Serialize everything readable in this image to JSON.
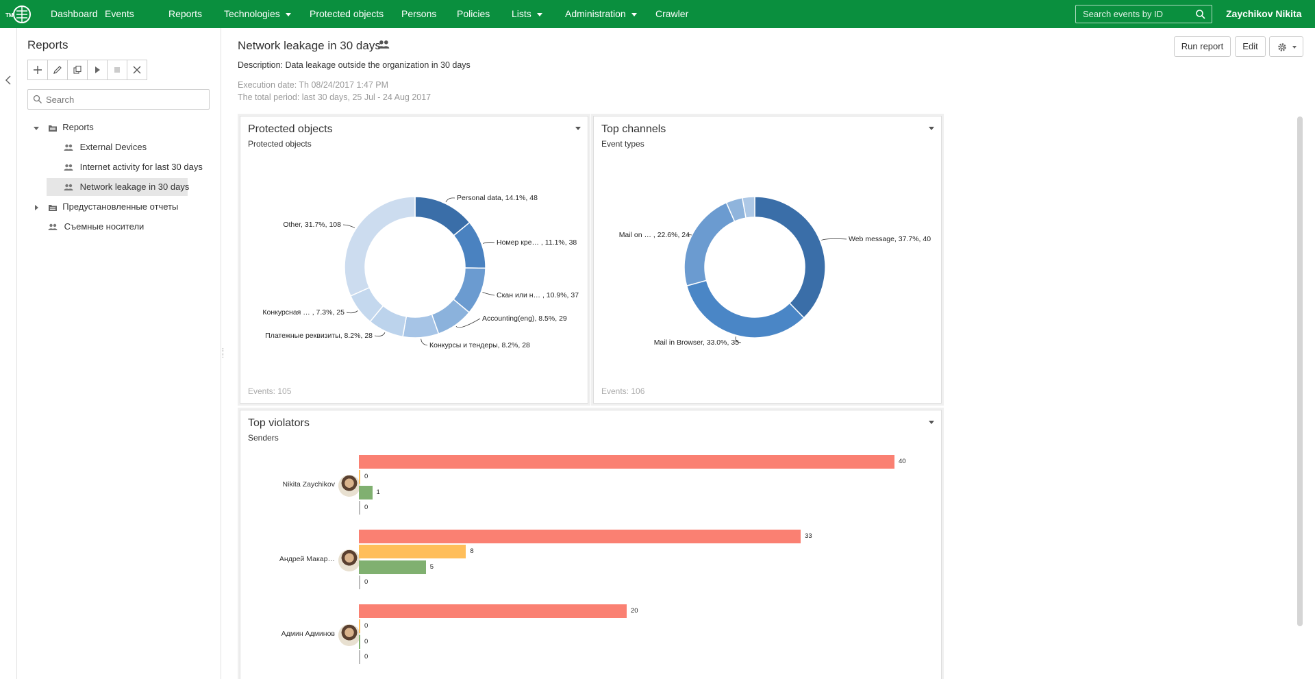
{
  "nav": {
    "items": [
      {
        "label": "Dashboard",
        "dropdown": false
      },
      {
        "label": "Events",
        "dropdown": false
      },
      {
        "label": "Reports",
        "dropdown": false
      },
      {
        "label": "Technologies",
        "dropdown": true
      },
      {
        "label": "Protected objects",
        "dropdown": false
      },
      {
        "label": "Persons",
        "dropdown": false
      },
      {
        "label": "Policies",
        "dropdown": false
      },
      {
        "label": "Lists",
        "dropdown": true
      },
      {
        "label": "Administration",
        "dropdown": true
      },
      {
        "label": "Crawler",
        "dropdown": false
      }
    ],
    "search_placeholder": "Search events by ID",
    "user": "Zaychikov Nikita",
    "logo_text": "TM",
    "color": "#0a8f3e"
  },
  "sidebar": {
    "title": "Reports",
    "search_placeholder": "Search",
    "toolbar": [
      "plus-icon",
      "pencil-icon",
      "copy-icon",
      "play-icon",
      "stop-icon",
      "close-icon"
    ],
    "tree": [
      {
        "label": "Reports",
        "icon": "folder-icon",
        "expanded": true
      },
      {
        "label": "External Devices",
        "icon": "people-icon"
      },
      {
        "label": "Internet activity for last 30 days",
        "icon": "people-icon"
      },
      {
        "label": "Network leakage in 30 days",
        "icon": "people-icon",
        "selected": true
      },
      {
        "label": "Предустановленные отчеты",
        "icon": "folder-icon",
        "expanded": false
      },
      {
        "label": "Съемные носители",
        "icon": "people-icon"
      }
    ]
  },
  "main": {
    "title": "Network leakage in 30 days",
    "description": "Description: Data leakage outside the organization in 30 days",
    "execution_date": "Execution date: Th 08/24/2017 1:47 PM",
    "total_period": "The total period: last 30 days, 25 Jul - 24 Aug 2017",
    "buttons": {
      "run": "Run report",
      "edit": "Edit"
    }
  },
  "widgets": {
    "protected": {
      "title": "Protected objects",
      "subtitle": "Protected objects",
      "footer": "Events: 105"
    },
    "channels": {
      "title": "Top channels",
      "subtitle": "Event types",
      "footer": "Events: 106"
    },
    "violators": {
      "title": "Top violators",
      "subtitle": "Senders"
    }
  },
  "chart_data": [
    {
      "type": "pie",
      "title": "Protected objects",
      "slices": [
        {
          "label": "Personal data, 14.1%, 48",
          "value": 48,
          "color": "#3a6ea8"
        },
        {
          "label": "Номер кре… , 11.1%, 38",
          "value": 38,
          "color": "#4a82c0"
        },
        {
          "label": "Скан или н… , 10.9%, 37",
          "value": 37,
          "color": "#6b9bd0"
        },
        {
          "label": "Accounting(eng), 8.5%, 29",
          "value": 29,
          "color": "#8bb2dc"
        },
        {
          "label": "Конкурсы и тендеры, 8.2%, 28",
          "value": 28,
          "color": "#a6c4e6"
        },
        {
          "label": "Платежные реквизиты, 8.2%, 28",
          "value": 28,
          "color": "#bcd3ec"
        },
        {
          "label": "Конкурсная … , 7.3%, 25",
          "value": 25,
          "color": "#c4d8ee"
        },
        {
          "label": "Other, 31.7%, 108",
          "value": 108,
          "color": "#ccdcef"
        }
      ]
    },
    {
      "type": "pie",
      "title": "Top channels",
      "slices": [
        {
          "label": "Web message, 37.7%, 40",
          "value": 40,
          "color": "#3a6ea8"
        },
        {
          "label": "Mail in Browser, 33.0%, 35",
          "value": 35,
          "color": "#4a86c6"
        },
        {
          "label": "Mail on … , 22.6%, 24",
          "value": 24,
          "color": "#6b9bd0"
        },
        {
          "label": "",
          "value": 4,
          "color": "#8fb4dc"
        },
        {
          "label": "",
          "value": 3,
          "color": "#adc8e6"
        }
      ]
    },
    {
      "type": "bar",
      "title": "Top violators",
      "xlim": [
        0,
        40
      ],
      "colors": [
        "#fa8072",
        "#ffbe5a",
        "#80b070",
        "#bbbbbb"
      ],
      "violators": [
        {
          "name": "Nikita Zaychikov",
          "values": [
            40,
            0,
            1,
            0
          ]
        },
        {
          "name": "Андрей Макар…",
          "values": [
            33,
            8,
            5,
            0
          ]
        },
        {
          "name": "Админ Админов",
          "values": [
            20,
            0,
            0,
            0
          ]
        }
      ]
    }
  ]
}
